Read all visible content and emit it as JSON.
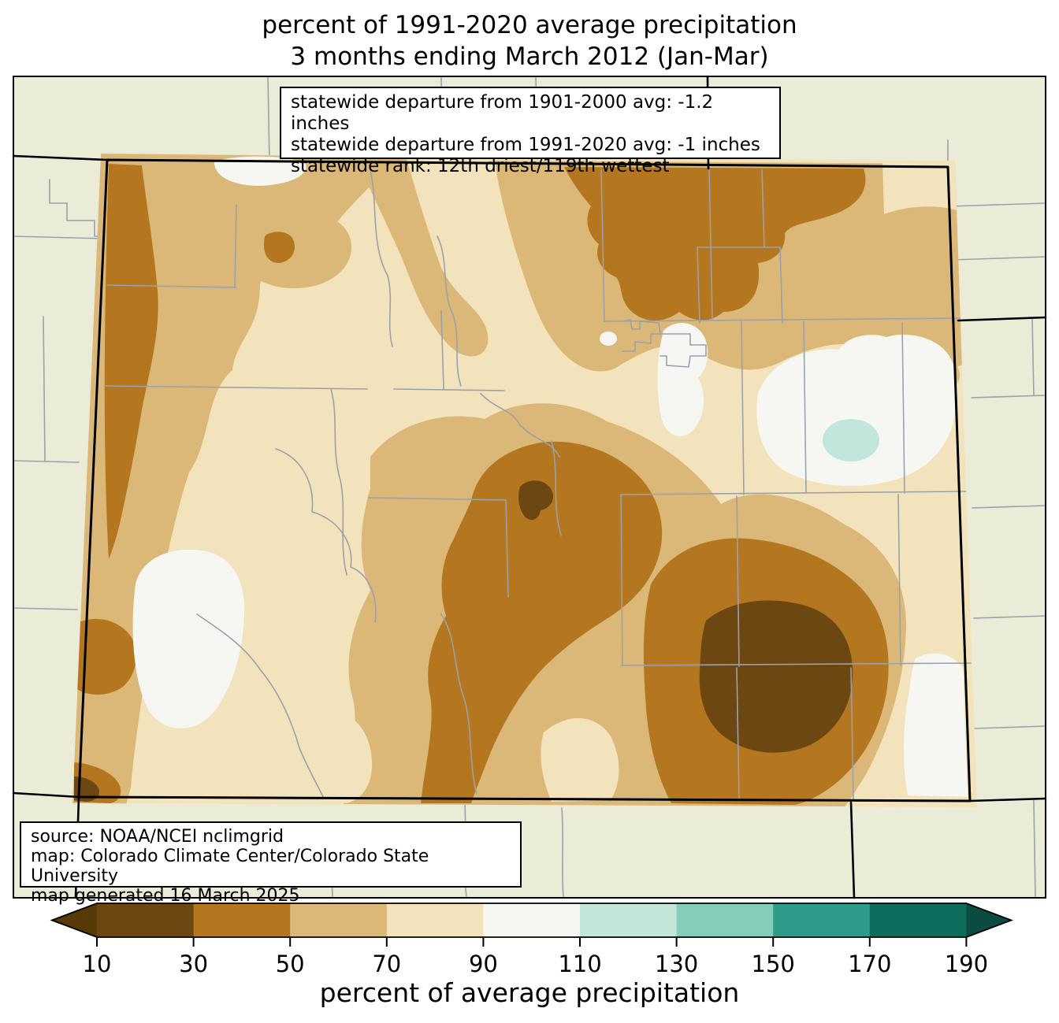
{
  "title": {
    "line1": "percent of 1991-2020 average precipitation",
    "line2": "3 months ending March 2012 (Jan-Mar)"
  },
  "stats_box": {
    "line1": "statewide departure from 1901-2000 avg: -1.2 inches",
    "line2": "statewide departure from 1991-2020 avg: -1 inches",
    "line3": "statewide rank: 12th driest/119th wettest"
  },
  "source_box": {
    "line1": "source: NOAA/NCEI nclimgrid",
    "line2": "map: Colorado Climate Center/Colorado State University",
    "line3": "map generated 16 March 2025"
  },
  "colorbar": {
    "axis_label": "percent of average precipitation",
    "tick_labels": [
      "10",
      "30",
      "50",
      "70",
      "90",
      "110",
      "130",
      "150",
      "170",
      "190"
    ],
    "segments": [
      {
        "range": "10-30",
        "color": "#6d4711"
      },
      {
        "range": "30-50",
        "color": "#b4771f"
      },
      {
        "range": "50-70",
        "color": "#dcb878"
      },
      {
        "range": "70-90",
        "color": "#f2e3bd"
      },
      {
        "range": "90-110",
        "color": "#f6f7f3"
      },
      {
        "range": "110-130",
        "color": "#c3e6da"
      },
      {
        "range": "130-150",
        "color": "#85ccb9"
      },
      {
        "range": "150-170",
        "color": "#2e9c8a"
      },
      {
        "range": "170-190",
        "color": "#0e6c5d"
      }
    ],
    "under_arrow": {
      "range": "<10",
      "color": "#583908"
    },
    "over_arrow": {
      "range": ">190",
      "color": "#0a4c41"
    }
  },
  "map": {
    "region": "Colorado",
    "quantity": "percent of average precipitation",
    "palette": {
      "below_10": "#583908",
      "range_10_30": "#6d4711",
      "range_30_50": "#b4771f",
      "range_50_70": "#dcb878",
      "range_70_90": "#f2e3bd",
      "range_90_110": "#f6f7f3",
      "range_110_130": "#c3e6da",
      "range_130_150": "#85ccb9",
      "range_150_170": "#2e9c8a",
      "range_170_190": "#0e6c5d",
      "above_190": "#0a4c41",
      "outside_state_fill": "#ebecd8",
      "county_line": "#9aa1a9",
      "state_border": "#000000"
    }
  }
}
